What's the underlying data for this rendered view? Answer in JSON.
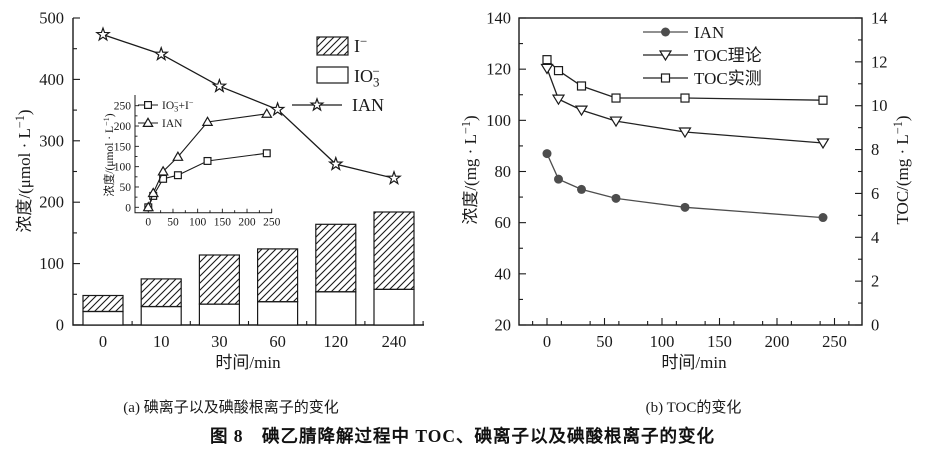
{
  "figure": {
    "caption_a": "(a) 碘离子以及碘酸根离子的变化",
    "caption_b": "(b) TOC的变化",
    "title": "图 8　碘乙腈降解过程中 TOC、碘离子以及碘酸根离子的变化"
  },
  "colors": {
    "ink": "#1a1a1a",
    "marker_gray": "#4d4d4d",
    "bg": "#ffffff"
  },
  "chart_data": [
    {
      "id": "panel_a",
      "type": "bar",
      "subtype": "stacked-bar-with-line",
      "xlabel": "时间/min",
      "ylabel": "浓度/(μmol·L⁻¹)",
      "ylabel_parts": [
        [
          "浓度/(μmol · L"
        ],
        [
          "−1",
          "sup"
        ],
        [
          ")"
        ]
      ],
      "categories": [
        "0",
        "10",
        "30",
        "60",
        "120",
        "240"
      ],
      "y_ticks": [
        0,
        100,
        200,
        300,
        400,
        500
      ],
      "ylim": [
        0,
        500
      ],
      "grid": false,
      "legend_position": "top-right",
      "bar_series": [
        {
          "name": "IO₃⁻",
          "fill": "white",
          "values": [
            22,
            30,
            34,
            38,
            54,
            58
          ]
        },
        {
          "name": "I⁻",
          "fill": "hatch",
          "values": [
            26,
            45,
            80,
            86,
            110,
            126
          ]
        }
      ],
      "bar_totals": [
        48,
        75,
        114,
        124,
        164,
        184
      ],
      "line_series": [
        {
          "name": "IAN",
          "marker": "star",
          "values": [
            473,
            441,
            389,
            351,
            262,
            239
          ]
        }
      ],
      "legend_parts": [
        [
          [
            "I"
          ],
          [
            "−",
            "sup"
          ]
        ],
        [
          [
            "IO"
          ],
          [
            "3",
            "sub"
          ],
          [
            "−",
            "sup",
            -7
          ]
        ],
        [
          [
            "IAN"
          ]
        ]
      ],
      "inset": {
        "type": "line",
        "ylabel": "浓度/(μmol·L⁻¹)",
        "ylabel_parts": [
          [
            "浓度/(μmol · L"
          ],
          [
            "−1",
            "sup"
          ],
          [
            ")"
          ]
        ],
        "x": [
          0,
          10,
          30,
          60,
          120,
          240
        ],
        "x_ticks": [
          0,
          50,
          100,
          150,
          200,
          250
        ],
        "y_ticks": [
          0,
          50,
          100,
          150,
          200,
          250
        ],
        "xlim": [
          0,
          250
        ],
        "ylim": [
          0,
          250
        ],
        "series": [
          {
            "name": "IO₃⁻+I⁻",
            "marker": "square",
            "label_parts": [
              [
                "IO"
              ],
              [
                "3",
                "sub"
              ],
              [
                "−",
                "sup",
                -4.5
              ],
              [
                "+I"
              ],
              [
                "−",
                "sup"
              ]
            ],
            "values": [
              0,
              28,
              70,
              79,
              114,
              133
            ]
          },
          {
            "name": "IAN",
            "marker": "triangle-up",
            "label_parts": [
              [
                "IAN"
              ]
            ],
            "values": [
              0,
              35,
              88,
              124,
              210,
              230
            ]
          }
        ]
      }
    },
    {
      "id": "panel_b",
      "type": "line",
      "xlabel": "时间/min",
      "ylabel_left": "浓度/(mg·L⁻¹)",
      "ylabel_left_parts": [
        [
          "浓度/(mg · L"
        ],
        [
          "−1",
          "sup"
        ],
        [
          ")"
        ]
      ],
      "ylabel_right": "TOC/(mg·L⁻¹)",
      "ylabel_right_parts": [
        [
          "TOC/(mg · L"
        ],
        [
          "−1",
          "sup"
        ],
        [
          ")"
        ]
      ],
      "x": [
        0,
        10,
        30,
        60,
        120,
        240
      ],
      "x_ticks": [
        0,
        50,
        100,
        150,
        200,
        250
      ],
      "ylim_left": [
        20,
        140
      ],
      "ylim_right": [
        0,
        14
      ],
      "y_ticks_left": [
        20,
        40,
        60,
        80,
        100,
        120,
        140
      ],
      "y_ticks_right": [
        0,
        2,
        4,
        6,
        8,
        10,
        12,
        14
      ],
      "grid": false,
      "legend_position": "top-center",
      "series": [
        {
          "name": "IAN",
          "axis": "left",
          "marker": "circle-filled",
          "values": [
            87,
            77,
            73,
            69.5,
            66,
            62
          ]
        },
        {
          "name": "TOC理论",
          "axis": "right",
          "marker": "triangle-down",
          "values": [
            11.7,
            10.3,
            9.8,
            9.3,
            8.8,
            8.3
          ]
        },
        {
          "name": "TOC实测",
          "axis": "right",
          "marker": "square",
          "values": [
            12.1,
            11.6,
            10.9,
            10.35,
            10.35,
            10.25
          ]
        }
      ]
    }
  ]
}
